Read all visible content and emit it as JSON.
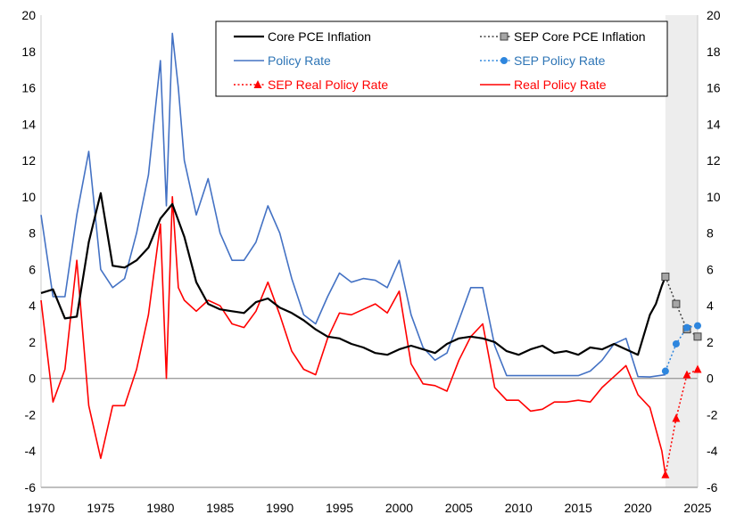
{
  "chart_data": {
    "type": "line",
    "title": "",
    "xlabel": "",
    "ylabel": "",
    "xlim": [
      1970,
      2025
    ],
    "ylim": [
      -6,
      20
    ],
    "x_ticks": [
      1970,
      1975,
      1980,
      1985,
      1990,
      1995,
      2000,
      2005,
      2010,
      2015,
      2020,
      2025
    ],
    "y_ticks": [
      -6,
      -4,
      -2,
      0,
      2,
      4,
      6,
      8,
      10,
      12,
      14,
      16,
      18,
      20
    ],
    "grid": false,
    "legend_position": "top-right",
    "shaded_region": {
      "from": 2022.3,
      "to": 2025,
      "color": "#ededed"
    },
    "series": [
      {
        "name": "Core PCE Inflation",
        "color": "#000000",
        "style": "solid",
        "marker": "none",
        "x": [
          1970,
          1971,
          1972,
          1973,
          1974,
          1975,
          1976,
          1977,
          1978,
          1979,
          1980,
          1981,
          1982,
          1983,
          1984,
          1985,
          1986,
          1987,
          1988,
          1989,
          1990,
          1991,
          1992,
          1993,
          1994,
          1995,
          1996,
          1997,
          1998,
          1999,
          2000,
          2001,
          2002,
          2003,
          2004,
          2005,
          2006,
          2007,
          2008,
          2009,
          2010,
          2011,
          2012,
          2013,
          2014,
          2015,
          2016,
          2017,
          2018,
          2019,
          2020,
          2021,
          2021.5,
          2022,
          2022.3
        ],
        "y": [
          4.7,
          4.9,
          3.3,
          3.4,
          7.5,
          10.2,
          6.2,
          6.1,
          6.5,
          7.2,
          8.8,
          9.6,
          7.8,
          5.3,
          4.1,
          3.8,
          3.7,
          3.6,
          4.2,
          4.4,
          3.9,
          3.6,
          3.2,
          2.7,
          2.3,
          2.2,
          1.9,
          1.7,
          1.4,
          1.3,
          1.6,
          1.8,
          1.6,
          1.4,
          1.9,
          2.2,
          2.3,
          2.2,
          2.0,
          1.5,
          1.3,
          1.6,
          1.8,
          1.4,
          1.5,
          1.3,
          1.7,
          1.6,
          1.9,
          1.6,
          1.3,
          3.5,
          4.1,
          5.1,
          5.6
        ]
      },
      {
        "name": "Policy Rate",
        "color": "#4472c4",
        "style": "solid",
        "marker": "none",
        "x": [
          1970,
          1971,
          1972,
          1973,
          1974,
          1975,
          1976,
          1977,
          1978,
          1979,
          1980,
          1980.5,
          1981,
          1981.5,
          1982,
          1983,
          1984,
          1985,
          1986,
          1987,
          1988,
          1989,
          1990,
          1991,
          1992,
          1993,
          1994,
          1995,
          1996,
          1997,
          1998,
          1999,
          2000,
          2001,
          2002,
          2003,
          2004,
          2005,
          2006,
          2007,
          2008,
          2009,
          2010,
          2015,
          2016,
          2017,
          2018,
          2019,
          2020,
          2021,
          2022.3
        ],
        "y": [
          9.0,
          4.5,
          4.5,
          9.0,
          12.5,
          6.0,
          5.0,
          5.5,
          8.0,
          11.2,
          17.5,
          9.5,
          19.0,
          16.0,
          12.0,
          9.0,
          11.0,
          8.0,
          6.5,
          6.5,
          7.5,
          9.5,
          8.0,
          5.5,
          3.5,
          3.0,
          4.5,
          5.8,
          5.3,
          5.5,
          5.4,
          5.0,
          6.5,
          3.5,
          1.7,
          1.0,
          1.4,
          3.2,
          5.0,
          5.0,
          1.8,
          0.15,
          0.15,
          0.15,
          0.4,
          1.0,
          1.9,
          2.2,
          0.1,
          0.08,
          0.2
        ]
      },
      {
        "name": "SEP Real Policy Rate",
        "color": "#ff0000",
        "style": "dotted",
        "marker": "triangle",
        "x": [
          2022.3,
          2023.2,
          2024.1,
          2025
        ],
        "y": [
          -5.3,
          -2.2,
          0.2,
          0.5
        ]
      },
      {
        "name": "SEP Core PCE Inflation",
        "color": "#404040",
        "style": "dotted",
        "marker": "square",
        "x": [
          2022.3,
          2023.2,
          2024.1,
          2025
        ],
        "y": [
          5.6,
          4.1,
          2.7,
          2.3
        ]
      },
      {
        "name": "SEP Policy Rate",
        "color": "#2e86de",
        "style": "dotted",
        "marker": "circle",
        "x": [
          2022.3,
          2023.2,
          2024.1,
          2025
        ],
        "y": [
          0.4,
          1.9,
          2.8,
          2.9
        ]
      },
      {
        "name": "Real Policy Rate",
        "color": "#ff0000",
        "style": "solid",
        "marker": "none",
        "x": [
          1970,
          1971,
          1972,
          1973,
          1974,
          1975,
          1976,
          1977,
          1978,
          1979,
          1980,
          1980.5,
          1981,
          1981.5,
          1982,
          1983,
          1984,
          1985,
          1986,
          1987,
          1988,
          1989,
          1990,
          1991,
          1992,
          1993,
          1994,
          1995,
          1996,
          1997,
          1998,
          1999,
          2000,
          2001,
          2002,
          2003,
          2004,
          2005,
          2006,
          2007,
          2008,
          2009,
          2010,
          2011,
          2012,
          2013,
          2014,
          2015,
          2016,
          2017,
          2018,
          2019,
          2020,
          2021,
          2022,
          2022.3
        ],
        "y": [
          4.3,
          -1.3,
          0.5,
          6.5,
          -1.5,
          -4.4,
          -1.5,
          -1.5,
          0.5,
          3.5,
          8.5,
          0.0,
          10.0,
          5.0,
          4.3,
          3.7,
          4.3,
          4.0,
          3.0,
          2.8,
          3.7,
          5.3,
          3.5,
          1.5,
          0.5,
          0.2,
          2.2,
          3.6,
          3.5,
          3.8,
          4.1,
          3.6,
          4.8,
          0.8,
          -0.3,
          -0.4,
          -0.7,
          1.0,
          2.3,
          3.0,
          -0.5,
          -1.2,
          -1.2,
          -1.8,
          -1.7,
          -1.3,
          -1.3,
          -1.2,
          -1.3,
          -0.5,
          0.1,
          0.7,
          -0.9,
          -1.6,
          -4.0,
          -5.3
        ]
      }
    ]
  }
}
